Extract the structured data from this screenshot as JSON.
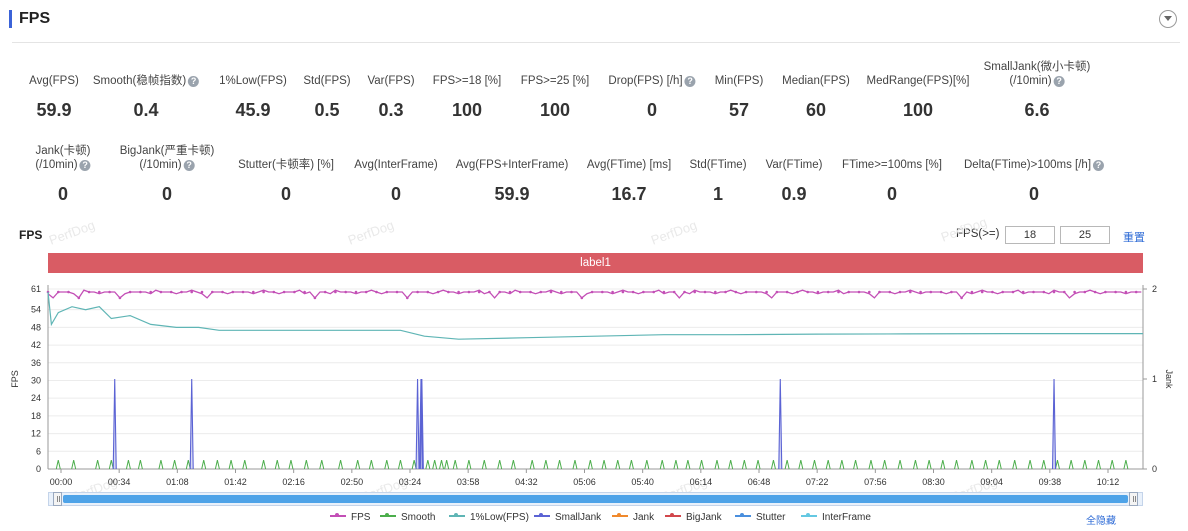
{
  "header": {
    "title": "FPS"
  },
  "metrics_row1": [
    {
      "label": "Avg(FPS)",
      "value": "59.9",
      "help": false
    },
    {
      "label": "Smooth(稳帧指数)",
      "value": "0.4",
      "help": true
    },
    {
      "label": "1%Low(FPS)",
      "value": "45.9",
      "help": false
    },
    {
      "label": "Std(FPS)",
      "value": "0.5",
      "help": false
    },
    {
      "label": "Var(FPS)",
      "value": "0.3",
      "help": false
    },
    {
      "label": "FPS>=18 [%]",
      "value": "100",
      "help": false
    },
    {
      "label": "FPS>=25 [%]",
      "value": "100",
      "help": false
    },
    {
      "label": "Drop(FPS) [/h]",
      "value": "0",
      "help": true
    },
    {
      "label": "Min(FPS)",
      "value": "57",
      "help": false
    },
    {
      "label": "Median(FPS)",
      "value": "60",
      "help": false
    },
    {
      "label": "MedRange(FPS)[%]",
      "value": "100",
      "help": false
    },
    {
      "label": "SmallJank(微小卡顿)",
      "label2": "(/10min)",
      "value": "6.6",
      "help": true
    }
  ],
  "metrics_row2": [
    {
      "label": "Jank(卡顿)",
      "label2": "(/10min)",
      "value": "0",
      "help": true
    },
    {
      "label": "BigJank(严重卡顿)",
      "label2": "(/10min)",
      "value": "0",
      "help": true
    },
    {
      "label": "Stutter(卡顿率) [%]",
      "value": "0",
      "help": false
    },
    {
      "label": "Avg(InterFrame)",
      "value": "0",
      "help": false
    },
    {
      "label": "Avg(FPS+InterFrame)",
      "value": "59.9",
      "help": false
    },
    {
      "label": "Avg(FTime) [ms]",
      "value": "16.7",
      "help": false
    },
    {
      "label": "Std(FTime)",
      "value": "1",
      "help": false
    },
    {
      "label": "Var(FTime)",
      "value": "0.9",
      "help": false
    },
    {
      "label": "FTime>=100ms [%]",
      "value": "0",
      "help": false
    },
    {
      "label": "Delta(FTime)>100ms [/h]",
      "value": "0",
      "help": true
    }
  ],
  "chart_header": {
    "title": "FPS",
    "fps_ge_label": "FPS(>=)",
    "threshold1": "18",
    "threshold2": "25",
    "reset_label": "重置"
  },
  "label_bar": {
    "text": "label1"
  },
  "watermark": "PerfDog",
  "chart_data": {
    "type": "line",
    "left_axis": {
      "label": "FPS",
      "ticks": [
        0,
        6,
        12,
        18,
        24,
        30,
        36,
        42,
        48,
        54,
        61
      ],
      "range": [
        0,
        61
      ]
    },
    "right_axis": {
      "label": "Jank",
      "ticks": [
        0,
        1,
        2
      ],
      "range": [
        0,
        2
      ]
    },
    "x_tick_labels": [
      "00:00",
      "00:34",
      "01:08",
      "01:42",
      "02:16",
      "02:50",
      "03:24",
      "03:58",
      "04:32",
      "05:06",
      "05:40",
      "06:14",
      "06:48",
      "07:22",
      "07:56",
      "08:30",
      "09:04",
      "09:38",
      "10:12"
    ],
    "x_range_seconds": [
      0,
      640
    ],
    "series": [
      {
        "name": "FPS",
        "color": "#c34fb6",
        "style": "marker-line",
        "baseline": 60,
        "dips_seconds": [
          4,
          18,
          43,
          92,
          156,
          209,
          262,
          311,
          368,
          422,
          483,
          534,
          598
        ]
      },
      {
        "name": "Smooth",
        "color": "#4cae4c",
        "style": "spikes",
        "values_seconds": [
          6,
          15,
          29,
          37,
          47,
          54,
          66,
          74,
          82,
          91,
          99,
          107,
          115,
          126,
          134,
          142,
          151,
          160,
          171,
          181,
          189,
          198,
          206,
          214,
          222,
          226,
          230,
          233,
          238,
          246,
          255,
          264,
          272,
          283,
          291,
          299,
          308,
          317,
          325,
          333,
          341,
          350,
          359,
          367,
          374,
          382,
          391,
          399,
          407,
          415,
          424,
          432,
          440,
          448,
          456,
          464,
          472,
          481,
          489,
          498,
          507,
          515,
          523,
          531,
          540,
          548,
          556,
          565,
          574,
          582,
          590,
          598,
          606,
          614,
          622,
          630
        ],
        "height": 3
      },
      {
        "name": "1%Low(FPS)",
        "color": "#5fb5b5",
        "style": "line",
        "points": [
          [
            0,
            60
          ],
          [
            2,
            49
          ],
          [
            6,
            53
          ],
          [
            14,
            55
          ],
          [
            22,
            54
          ],
          [
            30,
            55
          ],
          [
            37,
            51
          ],
          [
            48,
            52
          ],
          [
            60,
            49
          ],
          [
            75,
            48
          ],
          [
            88,
            48
          ],
          [
            100,
            47
          ],
          [
            120,
            47
          ],
          [
            150,
            47
          ],
          [
            180,
            47
          ],
          [
            206,
            47
          ],
          [
            220,
            45
          ],
          [
            240,
            44
          ],
          [
            280,
            44.5
          ],
          [
            320,
            45
          ],
          [
            360,
            45.5
          ],
          [
            400,
            45.5
          ],
          [
            450,
            45.7
          ],
          [
            500,
            45.8
          ],
          [
            560,
            45.9
          ],
          [
            640,
            45.9
          ]
        ]
      },
      {
        "name": "SmallJank",
        "color": "#5b63d4",
        "style": "spikes-right",
        "values_seconds": [
          39,
          84,
          216,
          218,
          218.5,
          428,
          588
        ],
        "height": 1
      },
      {
        "name": "Jank",
        "color": "#f0892c",
        "style": "none",
        "values": []
      },
      {
        "name": "BigJank",
        "color": "#d2474c",
        "style": "none",
        "values": []
      },
      {
        "name": "Stutter",
        "color": "#4a8fde",
        "style": "none",
        "values": []
      },
      {
        "name": "InterFrame",
        "color": "#64c8e2",
        "style": "none",
        "values": []
      }
    ]
  },
  "legend": [
    {
      "name": "FPS",
      "color": "#c34fb6"
    },
    {
      "name": "Smooth",
      "color": "#4cae4c"
    },
    {
      "name": "1%Low(FPS)",
      "color": "#5fb5b5"
    },
    {
      "name": "SmallJank",
      "color": "#5b63d4"
    },
    {
      "name": "Jank",
      "color": "#f0892c"
    },
    {
      "name": "BigJank",
      "color": "#d2474c"
    },
    {
      "name": "Stutter",
      "color": "#4a8fde"
    },
    {
      "name": "InterFrame",
      "color": "#64c8e2"
    }
  ],
  "hide_all_label": "全隐藏"
}
